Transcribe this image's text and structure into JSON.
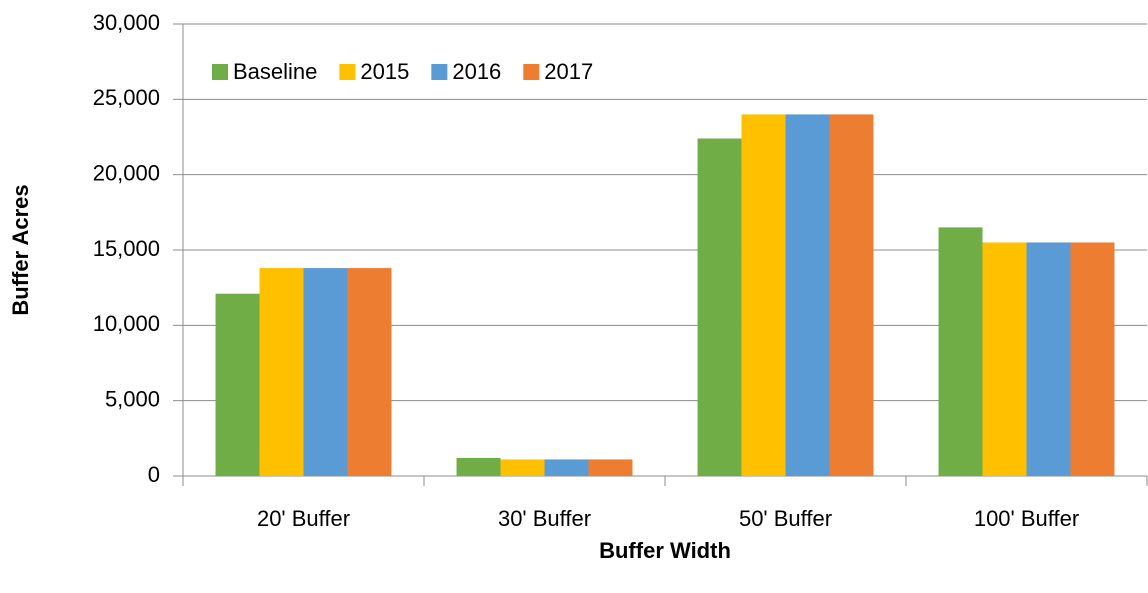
{
  "chart_data": {
    "type": "bar",
    "x_label": "Buffer Width",
    "y_label": "Buffer Acres",
    "categories": [
      "20' Buffer",
      "30' Buffer",
      "50' Buffer",
      "100' Buffer"
    ],
    "series": [
      {
        "name": "Baseline",
        "color": "#70ad47",
        "values": [
          12100,
          1200,
          22400,
          16500
        ]
      },
      {
        "name": "2015",
        "color": "#ffc000",
        "values": [
          13800,
          1100,
          24000,
          15500
        ]
      },
      {
        "name": "2016",
        "color": "#5b9bd5",
        "values": [
          13800,
          1100,
          24000,
          15500
        ]
      },
      {
        "name": "2017",
        "color": "#ed7d31",
        "values": [
          13800,
          1100,
          24000,
          15500
        ]
      }
    ],
    "ylim": [
      0,
      30000
    ],
    "yticks": [
      0,
      {
        "value": 5000,
        "label": "5,000"
      },
      {
        "value": 10000,
        "label": "10,000"
      },
      {
        "value": 15000,
        "label": "15,000"
      },
      {
        "value": 20000,
        "label": "20,000"
      },
      {
        "value": 25000,
        "label": "25,000"
      },
      {
        "value": 30000,
        "label": "30,000"
      }
    ],
    "grid": true,
    "legend": "top-left"
  }
}
